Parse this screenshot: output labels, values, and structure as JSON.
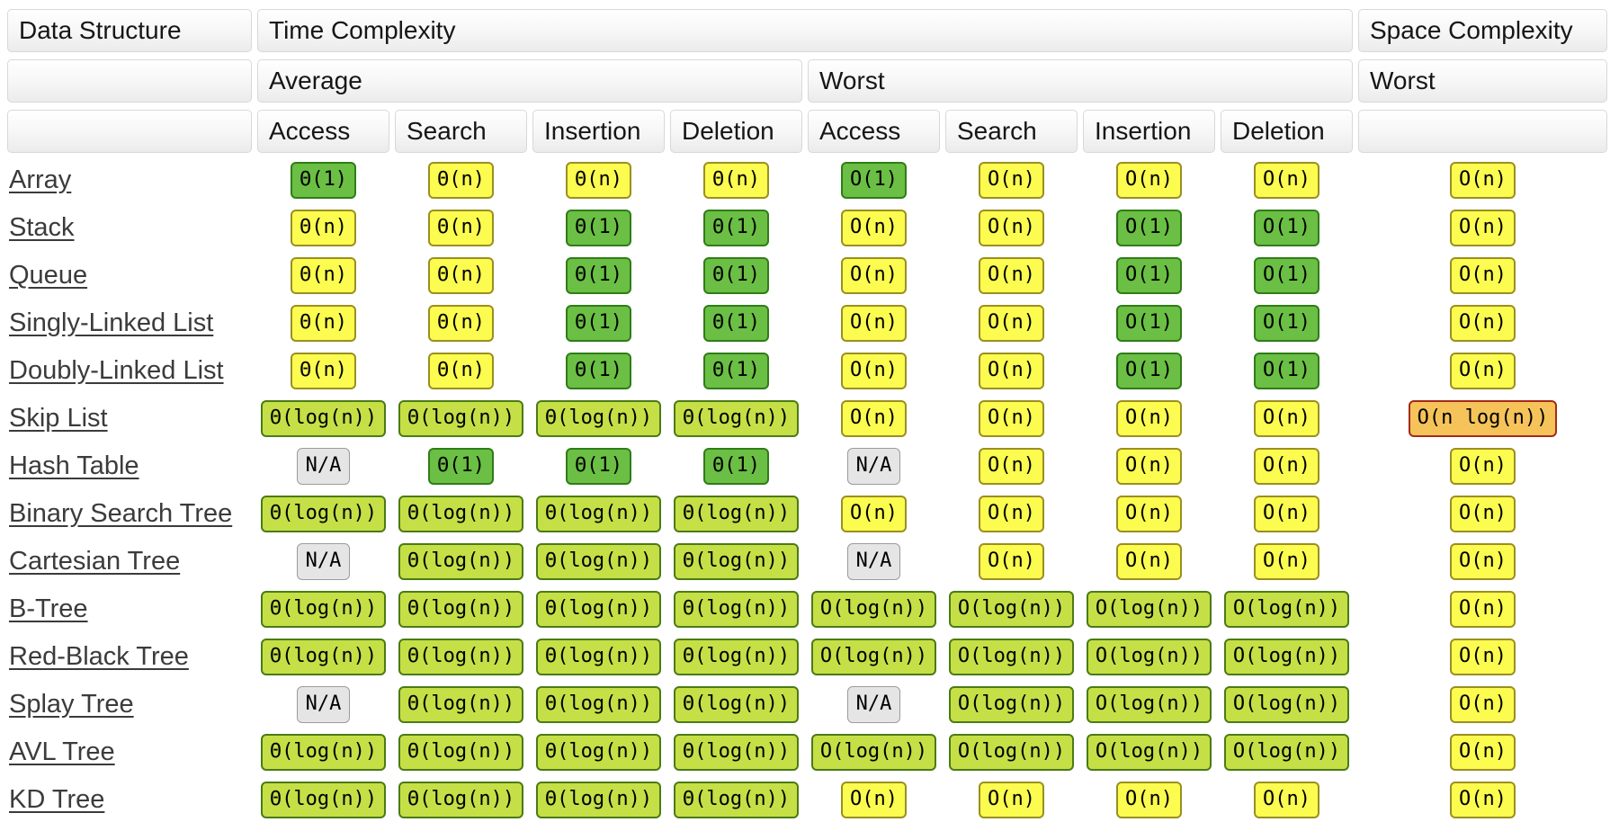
{
  "header": {
    "data_structure": "Data Structure",
    "time_complexity": "Time Complexity",
    "space_complexity": "Space Complexity",
    "average": "Average",
    "worst_time": "Worst",
    "worst_space": "Worst",
    "operations": [
      "Access",
      "Search",
      "Insertion",
      "Deletion"
    ]
  },
  "legend_colors": {
    "excellent": "#6abf44",
    "good": "#c5df46",
    "fair": "#fbfb50",
    "bad": "#f5c35a",
    "na": "#e5e5e5"
  },
  "rows": [
    {
      "name": "Array",
      "average": [
        {
          "t": "Θ(1)",
          "c": "excellent"
        },
        {
          "t": "Θ(n)",
          "c": "fair"
        },
        {
          "t": "Θ(n)",
          "c": "fair"
        },
        {
          "t": "Θ(n)",
          "c": "fair"
        }
      ],
      "worst": [
        {
          "t": "O(1)",
          "c": "excellent"
        },
        {
          "t": "O(n)",
          "c": "fair"
        },
        {
          "t": "O(n)",
          "c": "fair"
        },
        {
          "t": "O(n)",
          "c": "fair"
        }
      ],
      "space": {
        "t": "O(n)",
        "c": "fair"
      }
    },
    {
      "name": "Stack",
      "average": [
        {
          "t": "Θ(n)",
          "c": "fair"
        },
        {
          "t": "Θ(n)",
          "c": "fair"
        },
        {
          "t": "Θ(1)",
          "c": "excellent"
        },
        {
          "t": "Θ(1)",
          "c": "excellent"
        }
      ],
      "worst": [
        {
          "t": "O(n)",
          "c": "fair"
        },
        {
          "t": "O(n)",
          "c": "fair"
        },
        {
          "t": "O(1)",
          "c": "excellent"
        },
        {
          "t": "O(1)",
          "c": "excellent"
        }
      ],
      "space": {
        "t": "O(n)",
        "c": "fair"
      }
    },
    {
      "name": "Queue",
      "average": [
        {
          "t": "Θ(n)",
          "c": "fair"
        },
        {
          "t": "Θ(n)",
          "c": "fair"
        },
        {
          "t": "Θ(1)",
          "c": "excellent"
        },
        {
          "t": "Θ(1)",
          "c": "excellent"
        }
      ],
      "worst": [
        {
          "t": "O(n)",
          "c": "fair"
        },
        {
          "t": "O(n)",
          "c": "fair"
        },
        {
          "t": "O(1)",
          "c": "excellent"
        },
        {
          "t": "O(1)",
          "c": "excellent"
        }
      ],
      "space": {
        "t": "O(n)",
        "c": "fair"
      }
    },
    {
      "name": "Singly-Linked List",
      "average": [
        {
          "t": "Θ(n)",
          "c": "fair"
        },
        {
          "t": "Θ(n)",
          "c": "fair"
        },
        {
          "t": "Θ(1)",
          "c": "excellent"
        },
        {
          "t": "Θ(1)",
          "c": "excellent"
        }
      ],
      "worst": [
        {
          "t": "O(n)",
          "c": "fair"
        },
        {
          "t": "O(n)",
          "c": "fair"
        },
        {
          "t": "O(1)",
          "c": "excellent"
        },
        {
          "t": "O(1)",
          "c": "excellent"
        }
      ],
      "space": {
        "t": "O(n)",
        "c": "fair"
      }
    },
    {
      "name": "Doubly-Linked List",
      "average": [
        {
          "t": "Θ(n)",
          "c": "fair"
        },
        {
          "t": "Θ(n)",
          "c": "fair"
        },
        {
          "t": "Θ(1)",
          "c": "excellent"
        },
        {
          "t": "Θ(1)",
          "c": "excellent"
        }
      ],
      "worst": [
        {
          "t": "O(n)",
          "c": "fair"
        },
        {
          "t": "O(n)",
          "c": "fair"
        },
        {
          "t": "O(1)",
          "c": "excellent"
        },
        {
          "t": "O(1)",
          "c": "excellent"
        }
      ],
      "space": {
        "t": "O(n)",
        "c": "fair"
      }
    },
    {
      "name": "Skip List",
      "average": [
        {
          "t": "Θ(log(n))",
          "c": "good"
        },
        {
          "t": "Θ(log(n))",
          "c": "good"
        },
        {
          "t": "Θ(log(n))",
          "c": "good"
        },
        {
          "t": "Θ(log(n))",
          "c": "good"
        }
      ],
      "worst": [
        {
          "t": "O(n)",
          "c": "fair"
        },
        {
          "t": "O(n)",
          "c": "fair"
        },
        {
          "t": "O(n)",
          "c": "fair"
        },
        {
          "t": "O(n)",
          "c": "fair"
        }
      ],
      "space": {
        "t": "O(n log(n))",
        "c": "bad"
      }
    },
    {
      "name": "Hash Table",
      "average": [
        {
          "t": "N/A",
          "c": "na"
        },
        {
          "t": "Θ(1)",
          "c": "excellent"
        },
        {
          "t": "Θ(1)",
          "c": "excellent"
        },
        {
          "t": "Θ(1)",
          "c": "excellent"
        }
      ],
      "worst": [
        {
          "t": "N/A",
          "c": "na"
        },
        {
          "t": "O(n)",
          "c": "fair"
        },
        {
          "t": "O(n)",
          "c": "fair"
        },
        {
          "t": "O(n)",
          "c": "fair"
        }
      ],
      "space": {
        "t": "O(n)",
        "c": "fair"
      }
    },
    {
      "name": "Binary Search Tree",
      "average": [
        {
          "t": "Θ(log(n))",
          "c": "good"
        },
        {
          "t": "Θ(log(n))",
          "c": "good"
        },
        {
          "t": "Θ(log(n))",
          "c": "good"
        },
        {
          "t": "Θ(log(n))",
          "c": "good"
        }
      ],
      "worst": [
        {
          "t": "O(n)",
          "c": "fair"
        },
        {
          "t": "O(n)",
          "c": "fair"
        },
        {
          "t": "O(n)",
          "c": "fair"
        },
        {
          "t": "O(n)",
          "c": "fair"
        }
      ],
      "space": {
        "t": "O(n)",
        "c": "fair"
      }
    },
    {
      "name": "Cartesian Tree",
      "average": [
        {
          "t": "N/A",
          "c": "na"
        },
        {
          "t": "Θ(log(n))",
          "c": "good"
        },
        {
          "t": "Θ(log(n))",
          "c": "good"
        },
        {
          "t": "Θ(log(n))",
          "c": "good"
        }
      ],
      "worst": [
        {
          "t": "N/A",
          "c": "na"
        },
        {
          "t": "O(n)",
          "c": "fair"
        },
        {
          "t": "O(n)",
          "c": "fair"
        },
        {
          "t": "O(n)",
          "c": "fair"
        }
      ],
      "space": {
        "t": "O(n)",
        "c": "fair"
      }
    },
    {
      "name": "B-Tree",
      "average": [
        {
          "t": "Θ(log(n))",
          "c": "good"
        },
        {
          "t": "Θ(log(n))",
          "c": "good"
        },
        {
          "t": "Θ(log(n))",
          "c": "good"
        },
        {
          "t": "Θ(log(n))",
          "c": "good"
        }
      ],
      "worst": [
        {
          "t": "O(log(n))",
          "c": "good"
        },
        {
          "t": "O(log(n))",
          "c": "good"
        },
        {
          "t": "O(log(n))",
          "c": "good"
        },
        {
          "t": "O(log(n))",
          "c": "good"
        }
      ],
      "space": {
        "t": "O(n)",
        "c": "fair"
      }
    },
    {
      "name": "Red-Black Tree",
      "average": [
        {
          "t": "Θ(log(n))",
          "c": "good"
        },
        {
          "t": "Θ(log(n))",
          "c": "good"
        },
        {
          "t": "Θ(log(n))",
          "c": "good"
        },
        {
          "t": "Θ(log(n))",
          "c": "good"
        }
      ],
      "worst": [
        {
          "t": "O(log(n))",
          "c": "good"
        },
        {
          "t": "O(log(n))",
          "c": "good"
        },
        {
          "t": "O(log(n))",
          "c": "good"
        },
        {
          "t": "O(log(n))",
          "c": "good"
        }
      ],
      "space": {
        "t": "O(n)",
        "c": "fair"
      }
    },
    {
      "name": "Splay Tree",
      "average": [
        {
          "t": "N/A",
          "c": "na"
        },
        {
          "t": "Θ(log(n))",
          "c": "good"
        },
        {
          "t": "Θ(log(n))",
          "c": "good"
        },
        {
          "t": "Θ(log(n))",
          "c": "good"
        }
      ],
      "worst": [
        {
          "t": "N/A",
          "c": "na"
        },
        {
          "t": "O(log(n))",
          "c": "good"
        },
        {
          "t": "O(log(n))",
          "c": "good"
        },
        {
          "t": "O(log(n))",
          "c": "good"
        }
      ],
      "space": {
        "t": "O(n)",
        "c": "fair"
      }
    },
    {
      "name": "AVL Tree",
      "average": [
        {
          "t": "Θ(log(n))",
          "c": "good"
        },
        {
          "t": "Θ(log(n))",
          "c": "good"
        },
        {
          "t": "Θ(log(n))",
          "c": "good"
        },
        {
          "t": "Θ(log(n))",
          "c": "good"
        }
      ],
      "worst": [
        {
          "t": "O(log(n))",
          "c": "good"
        },
        {
          "t": "O(log(n))",
          "c": "good"
        },
        {
          "t": "O(log(n))",
          "c": "good"
        },
        {
          "t": "O(log(n))",
          "c": "good"
        }
      ],
      "space": {
        "t": "O(n)",
        "c": "fair"
      }
    },
    {
      "name": "KD Tree",
      "average": [
        {
          "t": "Θ(log(n))",
          "c": "good"
        },
        {
          "t": "Θ(log(n))",
          "c": "good"
        },
        {
          "t": "Θ(log(n))",
          "c": "good"
        },
        {
          "t": "Θ(log(n))",
          "c": "good"
        }
      ],
      "worst": [
        {
          "t": "O(n)",
          "c": "fair"
        },
        {
          "t": "O(n)",
          "c": "fair"
        },
        {
          "t": "O(n)",
          "c": "fair"
        },
        {
          "t": "O(n)",
          "c": "fair"
        }
      ],
      "space": {
        "t": "O(n)",
        "c": "fair"
      }
    }
  ]
}
